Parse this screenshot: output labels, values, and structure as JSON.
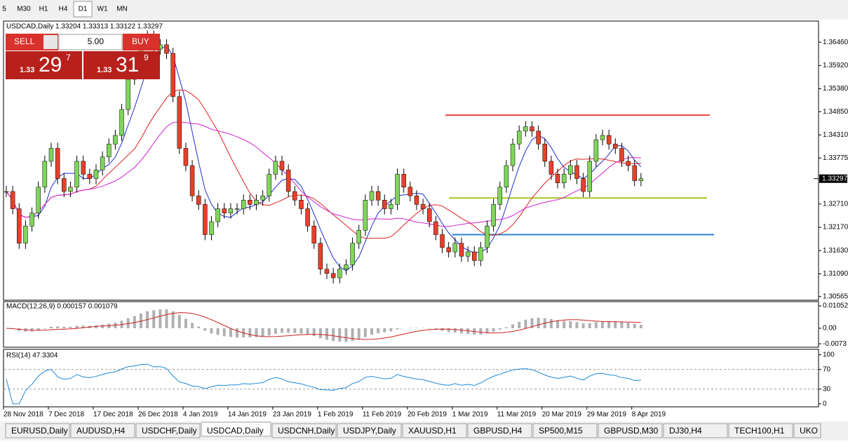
{
  "toolbar": {
    "timeframes": [
      "5",
      "M30",
      "H1",
      "H4",
      "D1",
      "W1",
      "MN"
    ],
    "active": 4
  },
  "header": {
    "symbol_line": "USDCAD,Daily  1.33204 1.33313 1.33122 1.33297"
  },
  "trade_panel": {
    "sell": "SELL",
    "buy": "BUY",
    "lot": "5.00",
    "bid": {
      "prefix": "1.33",
      "main": "29",
      "pip": "7"
    },
    "ask": {
      "prefix": "1.33",
      "main": "31",
      "pip": "9"
    }
  },
  "chart_data": {
    "type": "candlestick",
    "closes": [
      1.33,
      1.326,
      1.318,
      1.322,
      1.325,
      1.331,
      1.337,
      1.34,
      1.333,
      1.33,
      1.331,
      1.337,
      1.334,
      1.333,
      1.335,
      1.338,
      1.341,
      1.343,
      1.349,
      1.356,
      1.358,
      1.364,
      1.366,
      1.363,
      1.364,
      1.362,
      1.352,
      1.34,
      1.336,
      1.329,
      1.327,
      1.32,
      1.323,
      1.326,
      1.325,
      1.326,
      1.326,
      1.328,
      1.327,
      1.328,
      1.329,
      1.334,
      1.337,
      1.335,
      1.33,
      1.328,
      1.326,
      1.322,
      1.318,
      1.312,
      1.311,
      1.31,
      1.312,
      1.313,
      1.318,
      1.321,
      1.328,
      1.33,
      1.328,
      1.326,
      1.327,
      1.334,
      1.331,
      1.329,
      1.327,
      1.326,
      1.323,
      1.32,
      1.317,
      1.316,
      1.318,
      1.315,
      1.316,
      1.314,
      1.317,
      1.322,
      1.327,
      1.331,
      1.336,
      1.341,
      1.344,
      1.345,
      1.344,
      1.341,
      1.337,
      1.334,
      1.332,
      1.334,
      1.336,
      1.333,
      1.33,
      1.337,
      1.342,
      1.343,
      1.341,
      1.34,
      1.337,
      1.336,
      1.3325,
      1.33297
    ],
    "up_color": "#7fd65a",
    "down_color": "#e8402a",
    "ylim": [
      1.3048,
      1.3695
    ],
    "yticks": [
      {
        "value": 1.3646,
        "label": "1.36460"
      },
      {
        "value": 1.3592,
        "label": "1.35920"
      },
      {
        "value": 1.3538,
        "label": "1.35380"
      },
      {
        "value": 1.3485,
        "label": "1.34850"
      },
      {
        "value": 1.3431,
        "label": "1.34310"
      },
      {
        "value": 1.33775,
        "label": "1.33775"
      },
      {
        "value": 1.3271,
        "label": "1.32710"
      },
      {
        "value": 1.3217,
        "label": "1.32170"
      },
      {
        "value": 1.3163,
        "label": "1.31630"
      },
      {
        "value": 1.3109,
        "label": "1.31090"
      },
      1.30565
    ],
    "current_price": 1.33297,
    "levels": [
      {
        "value": 1.3477,
        "color": "#e8403a"
      },
      {
        "value": 1.3285,
        "color": "#a8c81e"
      },
      {
        "value": 1.32,
        "color": "#2a7fd8"
      }
    ],
    "x_labels": [
      "28 Nov 2018",
      "7 Dec 2018",
      "17 Dec 2018",
      "26 Dec 2018",
      "4 Jan 2019",
      "14 Jan 2019",
      "23 Jan 2019",
      "1 Feb 2019",
      "11 Feb 2019",
      "20 Feb 2019",
      "1 Mar 2019",
      "11 Mar 2019",
      "20 Mar 2019",
      "29 Mar 2019",
      "8 Apr 2019"
    ],
    "macd": {
      "label": "MACD(12,26,9) 0.000157 0.001079",
      "ylim": [
        -0.0089,
        0.0125
      ],
      "yticks": [
        0.010525,
        {
          "value": 0,
          "label": "0.00"
        },
        -0.0073
      ]
    },
    "rsi": {
      "label": "RSI(14) 47.3304",
      "ylim": [
        -6,
        111
      ],
      "yticks": [
        100,
        70,
        30,
        0
      ]
    }
  },
  "tabs": [
    "EURUSD,Daily",
    "AUDUSD,H4",
    "USDCHF,Daily",
    "USDCAD,Daily",
    "USDCNH,Daily",
    "USDJPY,Daily",
    "XAUUSD,H1",
    "GBPUSD,H4",
    "SP500,M15",
    "GBPUSD,M30",
    "DJ30,H4",
    "TECH100,H1",
    "UKO"
  ],
  "active_tab": 3
}
